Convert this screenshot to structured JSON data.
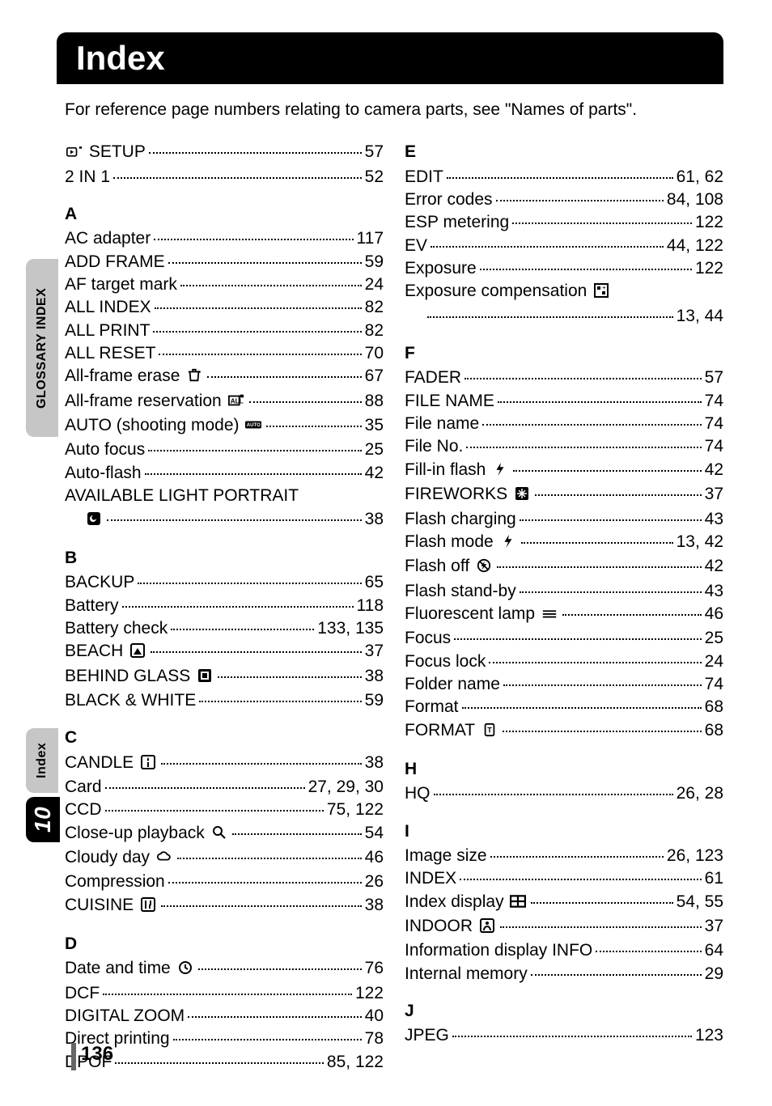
{
  "header": {
    "title": "Index",
    "intro": "For reference page numbers relating to camera parts, see \"Names of parts\"."
  },
  "side": {
    "glossary_tab": "GLOSSARY INDEX",
    "index_tab": "Index",
    "chapter_tab": "10"
  },
  "footer": {
    "page_number": "136"
  },
  "icons": {
    "play_setup": "play-setup-icon",
    "trash": "trash-icon",
    "reserve": "reserve-icon",
    "auto": "auto-icon",
    "night": "night-icon",
    "beach": "beach-icon",
    "glass": "glass-icon",
    "candle": "candle-icon",
    "magnify": "magnify-icon",
    "cloud": "cloud-icon",
    "cuisine": "cuisine-icon",
    "clock": "clock-icon",
    "exp_comp": "exposure-comp-icon",
    "flash": "flash-icon",
    "fireworks": "fireworks-icon",
    "flash_off": "flash-off-icon",
    "fluorescent": "fluorescent-icon",
    "format": "format-icon",
    "index_disp": "index-display-icon",
    "indoor": "indoor-icon"
  },
  "left": {
    "top": [
      {
        "label_pre": "",
        "icon": "play_setup",
        "label": " SETUP",
        "page": "57"
      },
      {
        "label": "2 IN 1",
        "page": "52"
      }
    ],
    "A": [
      {
        "label": "AC adapter",
        "page": "117"
      },
      {
        "label": "ADD FRAME",
        "page": "59"
      },
      {
        "label": "AF target mark",
        "page": "24"
      },
      {
        "label": "ALL INDEX",
        "page": "82"
      },
      {
        "label": "ALL PRINT",
        "page": "82"
      },
      {
        "label": "ALL RESET",
        "page": "70"
      },
      {
        "label": "All-frame erase ",
        "icon": "trash",
        "page": "67"
      },
      {
        "label": "All-frame reservation ",
        "icon": "reserve",
        "page": "88"
      },
      {
        "label": "AUTO (shooting mode) ",
        "icon": "auto",
        "page": "35"
      },
      {
        "label": "Auto focus",
        "page": "25"
      },
      {
        "label": "Auto-flash",
        "page": "42"
      },
      {
        "label_multiline": "AVAILABLE LIGHT PORTRAIT",
        "cont_icon": "night",
        "page": "38"
      }
    ],
    "B": [
      {
        "label": "BACKUP",
        "page": "65"
      },
      {
        "label": "Battery",
        "page": "118"
      },
      {
        "label": "Battery check",
        "page": "133, 135"
      },
      {
        "label": "BEACH ",
        "icon": "beach",
        "page": "37"
      },
      {
        "label": "BEHIND GLASS ",
        "icon": "glass",
        "page": "38"
      },
      {
        "label": "BLACK & WHITE",
        "page": "59"
      }
    ],
    "C": [
      {
        "label": "CANDLE ",
        "icon": "candle",
        "page": "38"
      },
      {
        "label": "Card",
        "page": "27, 29, 30"
      },
      {
        "label": "CCD",
        "page": "75, 122"
      },
      {
        "label": "Close-up playback ",
        "icon": "magnify",
        "page": "54"
      },
      {
        "label": "Cloudy day ",
        "icon": "cloud",
        "page": "46"
      },
      {
        "label": "Compression",
        "page": "26"
      },
      {
        "label": "CUISINE ",
        "icon": "cuisine",
        "page": "38"
      }
    ],
    "D": [
      {
        "label": "Date and time ",
        "icon": "clock",
        "page": "76"
      },
      {
        "label": "DCF",
        "page": "122"
      },
      {
        "label": "DIGITAL ZOOM",
        "page": "40"
      },
      {
        "label": "Direct printing",
        "page": "78"
      },
      {
        "label": "DPOF",
        "page": "85, 122"
      }
    ]
  },
  "right": {
    "E": [
      {
        "label": "EDIT",
        "page": "61, 62"
      },
      {
        "label": "Error codes",
        "page": "84, 108"
      },
      {
        "label": "ESP metering",
        "page": "122"
      },
      {
        "label": "EV",
        "page": "44, 122"
      },
      {
        "label": "Exposure",
        "page": "122"
      },
      {
        "label_multiline": "Exposure compensation ",
        "ml_icon": "exp_comp",
        "page": "13, 44"
      }
    ],
    "F": [
      {
        "label": "FADER",
        "page": "57"
      },
      {
        "label": "FILE NAME",
        "page": "74"
      },
      {
        "label": "File name",
        "page": "74"
      },
      {
        "label": "File No.",
        "page": "74"
      },
      {
        "label": "Fill-in flash ",
        "icon": "flash",
        "page": "42"
      },
      {
        "label": "FIREWORKS ",
        "icon": "fireworks",
        "page": "37"
      },
      {
        "label": "Flash charging",
        "page": "43"
      },
      {
        "label": "Flash mode ",
        "icon": "flash",
        "page": "13, 42"
      },
      {
        "label": "Flash off ",
        "icon": "flash_off",
        "page": "42"
      },
      {
        "label": "Flash stand-by",
        "page": "43"
      },
      {
        "label": "Fluorescent lamp ",
        "icon": "fluorescent",
        "page": "46"
      },
      {
        "label": "Focus",
        "page": "25"
      },
      {
        "label": "Focus lock",
        "page": "24"
      },
      {
        "label": "Folder name",
        "page": "74"
      },
      {
        "label": "Format",
        "page": "68"
      },
      {
        "label": "FORMAT ",
        "icon": "format",
        "page": "68"
      }
    ],
    "H": [
      {
        "label": "HQ",
        "page": "26, 28"
      }
    ],
    "I": [
      {
        "label": "Image size",
        "page": "26, 123"
      },
      {
        "label": "INDEX",
        "page": "61"
      },
      {
        "label": "Index display ",
        "icon": "index_disp",
        "page": "54, 55"
      },
      {
        "label": "INDOOR ",
        "icon": "indoor",
        "page": "37"
      },
      {
        "label": "Information display  INFO",
        "page": "64"
      },
      {
        "label": "Internal memory",
        "page": "29"
      }
    ],
    "J": [
      {
        "label": "JPEG",
        "page": "123"
      }
    ]
  },
  "section_labels": {
    "A": "A",
    "B": "B",
    "C": "C",
    "D": "D",
    "E": "E",
    "F": "F",
    "H": "H",
    "I": "I",
    "J": "J"
  }
}
